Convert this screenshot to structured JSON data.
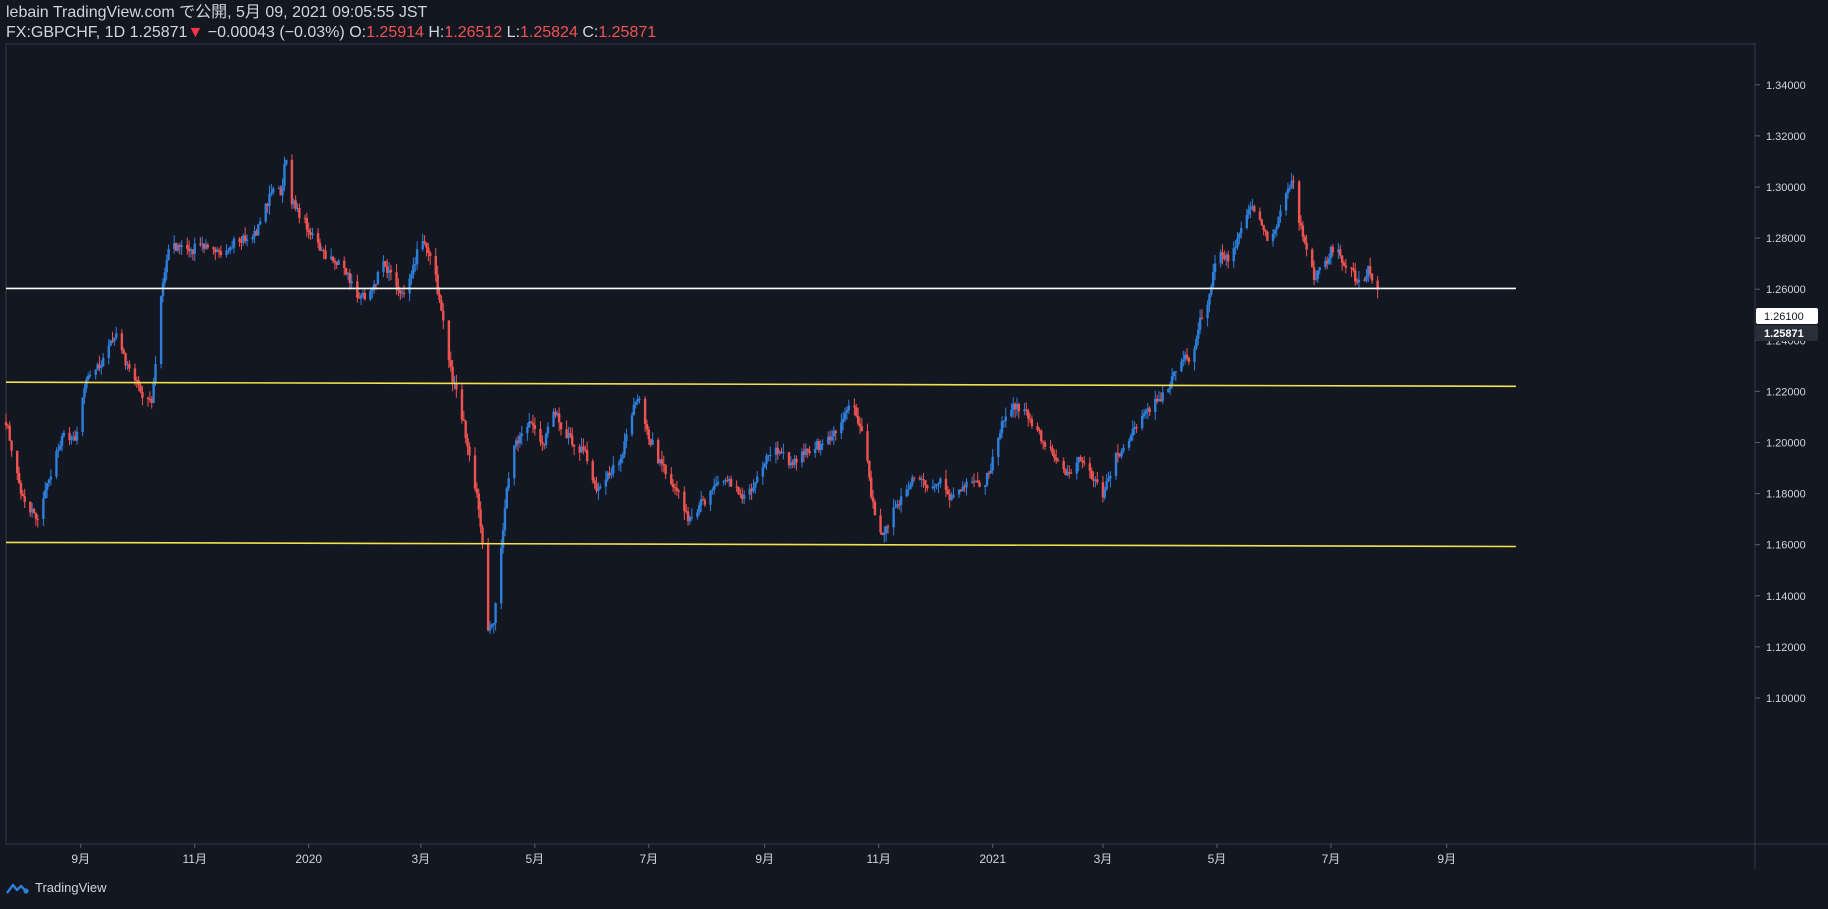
{
  "header": {
    "line1": "lebain TradingView.com で公開, 5月 09, 2021 09:05:55 JST",
    "symbol": "FX:GBPCHF, 1D",
    "last": "1.25871",
    "arrow": "▼",
    "change": "−0.00043 (−0.03%)",
    "o_label": "O:",
    "o_value": "1.25914",
    "h_label": "H:",
    "h_value": "1.26512",
    "l_label": "L:",
    "l_value": "1.25824",
    "c_label": "C:",
    "c_value": "1.25871"
  },
  "footer": {
    "brand": "TradingView"
  },
  "colors": {
    "background": "#131722",
    "up": "#2d7fdb",
    "down": "#ef5350",
    "support_line": "#f5e14c",
    "price_line": "#ffffff",
    "text": "#d1d4dc"
  },
  "chart_data": {
    "type": "candlestick",
    "symbol": "FX:GBPCHF",
    "interval": "1D",
    "y_ticks": [
      "1.34000",
      "1.32000",
      "1.30000",
      "1.28000",
      "1.26000",
      "1.24000",
      "1.22000",
      "1.20000",
      "1.18000",
      "1.16000",
      "1.14000",
      "1.12000",
      "1.10000"
    ],
    "x_ticks": [
      "9月",
      "11月",
      "2020",
      "3月",
      "5月",
      "7月",
      "9月",
      "11月",
      "2021",
      "3月",
      "5月",
      "7月",
      "9月"
    ],
    "price_labels": [
      {
        "value": "1.26100",
        "style": "white"
      },
      {
        "value": "1.25871",
        "style": "current"
      }
    ],
    "horizontal_lines": [
      {
        "color": "#ffffff",
        "start": [
          "2019-07-23",
          1.2603
        ],
        "end": [
          "2021-10-08",
          1.2603
        ]
      },
      {
        "color": "#f5e14c",
        "start": [
          "2019-07-23",
          1.2236
        ],
        "end": [
          "2021-10-08",
          1.222
        ]
      },
      {
        "color": "#f5e14c",
        "start": [
          "2019-07-23",
          1.1609
        ],
        "end": [
          "2021-10-08",
          1.1593
        ]
      }
    ],
    "series": [
      {
        "date": "2019-07-23",
        "close": 1.208
      },
      {
        "date": "2019-08-01",
        "close": 1.178
      },
      {
        "date": "2019-08-09",
        "close": 1.17
      },
      {
        "date": "2019-08-15",
        "close": 1.185
      },
      {
        "date": "2019-08-23",
        "close": 1.205
      },
      {
        "date": "2019-08-29",
        "close": 1.2
      },
      {
        "date": "2019-09-05",
        "close": 1.228
      },
      {
        "date": "2019-09-12",
        "close": 1.23
      },
      {
        "date": "2019-09-19",
        "close": 1.243
      },
      {
        "date": "2019-09-25",
        "close": 1.232
      },
      {
        "date": "2019-10-03",
        "close": 1.22
      },
      {
        "date": "2019-10-09",
        "close": 1.215
      },
      {
        "date": "2019-10-14",
        "close": 1.256
      },
      {
        "date": "2019-10-18",
        "close": 1.277
      },
      {
        "date": "2019-10-29",
        "close": 1.275
      },
      {
        "date": "2019-11-07",
        "close": 1.278
      },
      {
        "date": "2019-11-15",
        "close": 1.275
      },
      {
        "date": "2019-11-25",
        "close": 1.279
      },
      {
        "date": "2019-12-03",
        "close": 1.281
      },
      {
        "date": "2019-12-09",
        "close": 1.292
      },
      {
        "date": "2019-12-13",
        "close": 1.3
      },
      {
        "date": "2019-12-17",
        "close": 1.297
      },
      {
        "date": "2019-12-20",
        "close": 1.312
      },
      {
        "date": "2019-12-23",
        "close": 1.294
      },
      {
        "date": "2019-12-31",
        "close": 1.285
      },
      {
        "date": "2020-01-07",
        "close": 1.275
      },
      {
        "date": "2020-01-15",
        "close": 1.272
      },
      {
        "date": "2020-01-22",
        "close": 1.266
      },
      {
        "date": "2020-01-27",
        "close": 1.257
      },
      {
        "date": "2020-02-03",
        "close": 1.258
      },
      {
        "date": "2020-02-10",
        "close": 1.27
      },
      {
        "date": "2020-02-17",
        "close": 1.262
      },
      {
        "date": "2020-02-21",
        "close": 1.257
      },
      {
        "date": "2020-02-25",
        "close": 1.265
      },
      {
        "date": "2020-03-01",
        "close": 1.28
      },
      {
        "date": "2020-03-08",
        "close": 1.268
      },
      {
        "date": "2020-03-13",
        "close": 1.247
      },
      {
        "date": "2020-03-18",
        "close": 1.225
      },
      {
        "date": "2020-03-23",
        "close": 1.211
      },
      {
        "date": "2020-03-31",
        "close": 1.18
      },
      {
        "date": "2020-04-03",
        "close": 1.16
      },
      {
        "date": "2020-04-06",
        "close": 1.125
      },
      {
        "date": "2020-04-09",
        "close": 1.13
      },
      {
        "date": "2020-04-13",
        "close": 1.16
      },
      {
        "date": "2020-04-18",
        "close": 1.195
      },
      {
        "date": "2020-04-23",
        "close": 1.202
      },
      {
        "date": "2020-04-29",
        "close": 1.209
      },
      {
        "date": "2020-05-05",
        "close": 1.198
      },
      {
        "date": "2020-05-11",
        "close": 1.212
      },
      {
        "date": "2020-05-15",
        "close": 1.207
      },
      {
        "date": "2020-05-21",
        "close": 1.2
      },
      {
        "date": "2020-05-28",
        "close": 1.195
      },
      {
        "date": "2020-06-03",
        "close": 1.183
      },
      {
        "date": "2020-06-08",
        "close": 1.187
      },
      {
        "date": "2020-06-16",
        "close": 1.192
      },
      {
        "date": "2020-06-20",
        "close": 1.208
      },
      {
        "date": "2020-06-25",
        "close": 1.218
      },
      {
        "date": "2020-06-30",
        "close": 1.205
      },
      {
        "date": "2020-07-05",
        "close": 1.195
      },
      {
        "date": "2020-07-11",
        "close": 1.187
      },
      {
        "date": "2020-07-17",
        "close": 1.18
      },
      {
        "date": "2020-07-22",
        "close": 1.17
      },
      {
        "date": "2020-07-28",
        "close": 1.175
      },
      {
        "date": "2020-08-03",
        "close": 1.18
      },
      {
        "date": "2020-08-09",
        "close": 1.186
      },
      {
        "date": "2020-08-15",
        "close": 1.183
      },
      {
        "date": "2020-08-22",
        "close": 1.178
      },
      {
        "date": "2020-08-28",
        "close": 1.186
      },
      {
        "date": "2020-09-03",
        "close": 1.195
      },
      {
        "date": "2020-09-09",
        "close": 1.198
      },
      {
        "date": "2020-09-15",
        "close": 1.192
      },
      {
        "date": "2020-09-21",
        "close": 1.195
      },
      {
        "date": "2020-09-27",
        "close": 1.198
      },
      {
        "date": "2020-10-03",
        "close": 1.2
      },
      {
        "date": "2020-10-11",
        "close": 1.205
      },
      {
        "date": "2020-10-18",
        "close": 1.217
      },
      {
        "date": "2020-10-21",
        "close": 1.208
      },
      {
        "date": "2020-10-25",
        "close": 1.197
      },
      {
        "date": "2020-10-29",
        "close": 1.175
      },
      {
        "date": "2020-11-02",
        "close": 1.163
      },
      {
        "date": "2020-11-07",
        "close": 1.17
      },
      {
        "date": "2020-11-12",
        "close": 1.177
      },
      {
        "date": "2020-11-18",
        "close": 1.184
      },
      {
        "date": "2020-11-24",
        "close": 1.186
      },
      {
        "date": "2020-11-29",
        "close": 1.18
      },
      {
        "date": "2020-12-04",
        "close": 1.185
      },
      {
        "date": "2020-12-09",
        "close": 1.178
      },
      {
        "date": "2020-12-15",
        "close": 1.183
      },
      {
        "date": "2020-12-20",
        "close": 1.186
      },
      {
        "date": "2020-12-26",
        "close": 1.182
      },
      {
        "date": "2020-12-31",
        "close": 1.19
      },
      {
        "date": "2021-01-06",
        "close": 1.208
      },
      {
        "date": "2021-01-12",
        "close": 1.215
      },
      {
        "date": "2021-01-19",
        "close": 1.211
      },
      {
        "date": "2021-01-24",
        "close": 1.205
      },
      {
        "date": "2021-01-30",
        "close": 1.198
      },
      {
        "date": "2021-02-05",
        "close": 1.192
      },
      {
        "date": "2021-02-11",
        "close": 1.187
      },
      {
        "date": "2021-02-17",
        "close": 1.195
      },
      {
        "date": "2021-02-23",
        "close": 1.187
      },
      {
        "date": "2021-03-01",
        "close": 1.18
      },
      {
        "date": "2021-03-07",
        "close": 1.193
      },
      {
        "date": "2021-03-13",
        "close": 1.2
      },
      {
        "date": "2021-03-19",
        "close": 1.205
      },
      {
        "date": "2021-03-24",
        "close": 1.212
      },
      {
        "date": "2021-03-30",
        "close": 1.216
      },
      {
        "date": "2021-04-05",
        "close": 1.222
      },
      {
        "date": "2021-04-11",
        "close": 1.233
      },
      {
        "date": "2021-04-17",
        "close": 1.232
      },
      {
        "date": "2021-04-22",
        "close": 1.247
      },
      {
        "date": "2021-04-28",
        "close": 1.26
      },
      {
        "date": "2021-05-01",
        "close": 1.277
      },
      {
        "date": "2021-05-08",
        "close": 1.27
      },
      {
        "date": "2021-05-14",
        "close": 1.285
      },
      {
        "date": "2021-05-19",
        "close": 1.294
      },
      {
        "date": "2021-05-24",
        "close": 1.288
      },
      {
        "date": "2021-05-28",
        "close": 1.28
      },
      {
        "date": "2021-06-02",
        "close": 1.286
      },
      {
        "date": "2021-06-07",
        "close": 1.299
      },
      {
        "date": "2021-06-11",
        "close": 1.303
      },
      {
        "date": "2021-06-14",
        "close": 1.287
      },
      {
        "date": "2021-06-18",
        "close": 1.275
      },
      {
        "date": "2021-06-22",
        "close": 1.265
      },
      {
        "date": "2021-06-28",
        "close": 1.27
      },
      {
        "date": "2021-07-03",
        "close": 1.278
      },
      {
        "date": "2021-07-08",
        "close": 1.268
      },
      {
        "date": "2021-07-13",
        "close": 1.266
      },
      {
        "date": "2021-07-17",
        "close": 1.262
      },
      {
        "date": "2021-07-21",
        "close": 1.268
      },
      {
        "date": "2021-07-26",
        "close": 1.2587
      }
    ]
  }
}
